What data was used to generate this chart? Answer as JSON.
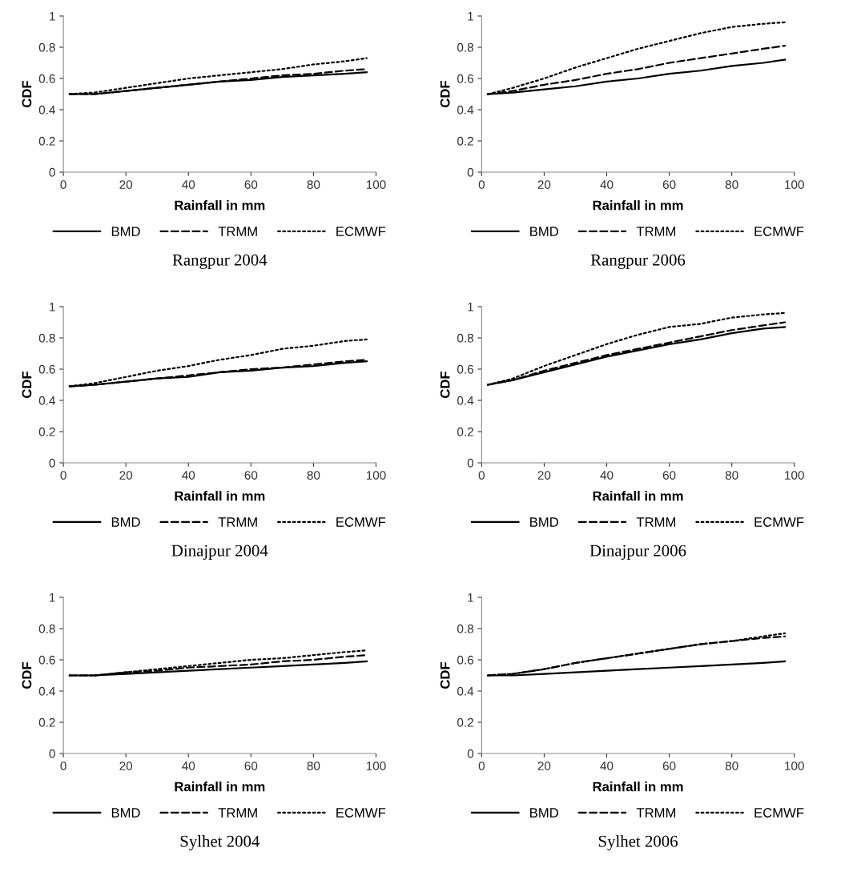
{
  "chart_data": [
    {
      "type": "line",
      "title": "Rangpur 2004",
      "xlabel": "Rainfall in mm",
      "ylabel": "CDF",
      "x": [
        2,
        10,
        20,
        30,
        40,
        50,
        60,
        70,
        80,
        90,
        97
      ],
      "xlim": [
        0,
        100
      ],
      "xticks": [
        0,
        20,
        40,
        60,
        80,
        100
      ],
      "ylim": [
        0,
        1
      ],
      "yticks": [
        0,
        0.2,
        0.4,
        0.6,
        0.8,
        1
      ],
      "grid": false,
      "legend": "bottom",
      "series": [
        {
          "name": "BMD",
          "color": "#000000",
          "line_style": "solid",
          "values": [
            0.5,
            0.5,
            0.52,
            0.54,
            0.56,
            0.58,
            0.59,
            0.61,
            0.62,
            0.63,
            0.64
          ]
        },
        {
          "name": "TRMM",
          "color": "#000000",
          "line_style": "dashed",
          "values": [
            0.5,
            0.5,
            0.52,
            0.54,
            0.56,
            0.58,
            0.6,
            0.62,
            0.63,
            0.65,
            0.66
          ]
        },
        {
          "name": "ECMWF",
          "color": "#000000",
          "line_style": "dotted",
          "values": [
            0.5,
            0.51,
            0.54,
            0.57,
            0.6,
            0.62,
            0.64,
            0.66,
            0.69,
            0.71,
            0.73
          ]
        }
      ]
    },
    {
      "type": "line",
      "title": "Rangpur 2006",
      "xlabel": "Rainfall in mm",
      "ylabel": "CDF",
      "x": [
        2,
        10,
        20,
        30,
        40,
        50,
        60,
        70,
        80,
        90,
        97
      ],
      "xlim": [
        0,
        100
      ],
      "xticks": [
        0,
        20,
        40,
        60,
        80,
        100
      ],
      "ylim": [
        0,
        1
      ],
      "yticks": [
        0,
        0.2,
        0.4,
        0.6,
        0.8,
        1
      ],
      "grid": false,
      "legend": "bottom",
      "series": [
        {
          "name": "BMD",
          "color": "#000000",
          "line_style": "solid",
          "values": [
            0.5,
            0.51,
            0.53,
            0.55,
            0.58,
            0.6,
            0.63,
            0.65,
            0.68,
            0.7,
            0.72
          ]
        },
        {
          "name": "TRMM",
          "color": "#000000",
          "line_style": "dashed",
          "values": [
            0.5,
            0.52,
            0.56,
            0.59,
            0.63,
            0.66,
            0.7,
            0.73,
            0.76,
            0.79,
            0.81
          ]
        },
        {
          "name": "ECMWF",
          "color": "#000000",
          "line_style": "dotted",
          "values": [
            0.5,
            0.54,
            0.6,
            0.67,
            0.73,
            0.79,
            0.84,
            0.89,
            0.93,
            0.95,
            0.96
          ]
        }
      ]
    },
    {
      "type": "line",
      "title": "Dinajpur 2004",
      "xlabel": "Rainfall in mm",
      "ylabel": "CDF",
      "x": [
        2,
        10,
        20,
        30,
        40,
        50,
        60,
        70,
        80,
        90,
        97
      ],
      "xlim": [
        0,
        100
      ],
      "xticks": [
        0,
        20,
        40,
        60,
        80,
        100
      ],
      "ylim": [
        0,
        1
      ],
      "yticks": [
        0,
        0.2,
        0.4,
        0.6,
        0.8,
        1
      ],
      "grid": false,
      "legend": "bottom",
      "series": [
        {
          "name": "BMD",
          "color": "#000000",
          "line_style": "solid",
          "values": [
            0.49,
            0.5,
            0.52,
            0.54,
            0.55,
            0.58,
            0.59,
            0.61,
            0.62,
            0.64,
            0.65
          ]
        },
        {
          "name": "TRMM",
          "color": "#000000",
          "line_style": "dashed",
          "values": [
            0.49,
            0.5,
            0.52,
            0.54,
            0.56,
            0.58,
            0.6,
            0.61,
            0.63,
            0.65,
            0.66
          ]
        },
        {
          "name": "ECMWF",
          "color": "#000000",
          "line_style": "dotted",
          "values": [
            0.49,
            0.51,
            0.55,
            0.59,
            0.62,
            0.66,
            0.69,
            0.73,
            0.75,
            0.78,
            0.79
          ]
        }
      ]
    },
    {
      "type": "line",
      "title": "Dinajpur 2006",
      "xlabel": "Rainfall in mm",
      "ylabel": "CDF",
      "x": [
        2,
        10,
        20,
        30,
        40,
        50,
        60,
        70,
        80,
        90,
        97
      ],
      "xlim": [
        0,
        100
      ],
      "xticks": [
        0,
        20,
        40,
        60,
        80,
        100
      ],
      "ylim": [
        0,
        1
      ],
      "yticks": [
        0,
        0.2,
        0.4,
        0.6,
        0.8,
        1
      ],
      "grid": false,
      "legend": "bottom",
      "series": [
        {
          "name": "BMD",
          "color": "#000000",
          "line_style": "solid",
          "values": [
            0.5,
            0.53,
            0.58,
            0.63,
            0.68,
            0.72,
            0.76,
            0.79,
            0.83,
            0.86,
            0.87
          ]
        },
        {
          "name": "TRMM",
          "color": "#000000",
          "line_style": "dashed",
          "values": [
            0.5,
            0.53,
            0.59,
            0.64,
            0.69,
            0.73,
            0.77,
            0.81,
            0.85,
            0.88,
            0.9
          ]
        },
        {
          "name": "ECMWF",
          "color": "#000000",
          "line_style": "dotted",
          "values": [
            0.5,
            0.54,
            0.62,
            0.69,
            0.76,
            0.82,
            0.87,
            0.89,
            0.93,
            0.95,
            0.96
          ]
        }
      ]
    },
    {
      "type": "line",
      "title": "Sylhet 2004",
      "xlabel": "Rainfall in mm",
      "ylabel": "CDF",
      "x": [
        2,
        10,
        20,
        30,
        40,
        50,
        60,
        70,
        80,
        90,
        97
      ],
      "xlim": [
        0,
        100
      ],
      "xticks": [
        0,
        20,
        40,
        60,
        80,
        100
      ],
      "ylim": [
        0,
        1
      ],
      "yticks": [
        0,
        0.2,
        0.4,
        0.6,
        0.8,
        1
      ],
      "grid": false,
      "legend": "bottom",
      "series": [
        {
          "name": "BMD",
          "color": "#000000",
          "line_style": "solid",
          "values": [
            0.5,
            0.5,
            0.51,
            0.52,
            0.53,
            0.54,
            0.55,
            0.56,
            0.57,
            0.58,
            0.59
          ]
        },
        {
          "name": "TRMM",
          "color": "#000000",
          "line_style": "dashed",
          "values": [
            0.5,
            0.5,
            0.52,
            0.53,
            0.55,
            0.56,
            0.57,
            0.59,
            0.6,
            0.62,
            0.63
          ]
        },
        {
          "name": "ECMWF",
          "color": "#000000",
          "line_style": "dotted",
          "values": [
            0.5,
            0.5,
            0.52,
            0.54,
            0.56,
            0.58,
            0.6,
            0.61,
            0.63,
            0.65,
            0.66
          ]
        }
      ]
    },
    {
      "type": "line",
      "title": "Sylhet 2006",
      "xlabel": "Rainfall in mm",
      "ylabel": "CDF",
      "x": [
        2,
        10,
        20,
        30,
        40,
        50,
        60,
        70,
        80,
        90,
        97
      ],
      "xlim": [
        0,
        100
      ],
      "xticks": [
        0,
        20,
        40,
        60,
        80,
        100
      ],
      "ylim": [
        0,
        1
      ],
      "yticks": [
        0,
        0.2,
        0.4,
        0.6,
        0.8,
        1
      ],
      "grid": false,
      "legend": "bottom",
      "series": [
        {
          "name": "BMD",
          "color": "#000000",
          "line_style": "solid",
          "values": [
            0.5,
            0.5,
            0.51,
            0.52,
            0.53,
            0.54,
            0.55,
            0.56,
            0.57,
            0.58,
            0.59
          ]
        },
        {
          "name": "TRMM",
          "color": "#000000",
          "line_style": "dashed",
          "values": [
            0.5,
            0.51,
            0.54,
            0.58,
            0.61,
            0.64,
            0.67,
            0.7,
            0.72,
            0.74,
            0.75
          ]
        },
        {
          "name": "ECMWF",
          "color": "#000000",
          "line_style": "dotted",
          "values": [
            0.5,
            0.51,
            0.54,
            0.58,
            0.61,
            0.64,
            0.67,
            0.7,
            0.72,
            0.75,
            0.77
          ]
        }
      ]
    }
  ]
}
